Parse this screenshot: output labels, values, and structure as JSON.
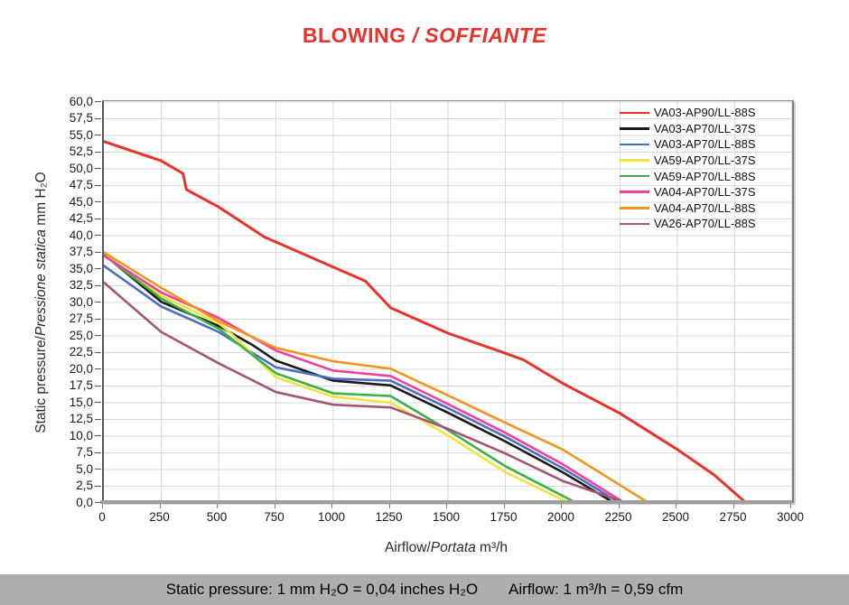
{
  "title": {
    "text_en": "BLOWING",
    "separator": " / ",
    "text_it": "SOFFIANTE",
    "color": "#e8322b"
  },
  "footer": {
    "left": "Static pressure: 1 mm H₂O = 0,04 inches H₂O",
    "right": "Airflow: 1 m³/h = 0,59 cfm",
    "bg_color": "#aeaeae"
  },
  "colors": {
    "gridline": "#d9d9d9",
    "axis": "#808080",
    "tick_text": "#1a1a1a"
  },
  "chart_data": {
    "type": "line",
    "title": "BLOWING / SOFFIANTE",
    "xlabel_parts": {
      "normal": "Airflow/",
      "italic": "Portata",
      "unit": " m³/h"
    },
    "ylabel_parts": {
      "normal": "Static pressure/",
      "italic": "Pressione statica",
      "unit": " mm  H₂O"
    },
    "xlim": [
      0,
      3000
    ],
    "xtick_step": 250,
    "ylim": [
      0,
      60
    ],
    "ytick_step": 2.5,
    "ytick_decimal_comma": true,
    "grid": true,
    "legend_position": "top-right",
    "series": [
      {
        "name": "VA03-AP90/LL-88S",
        "color": "#e8322b",
        "points": [
          [
            0,
            54.1
          ],
          [
            250,
            51.2
          ],
          [
            345,
            49.3
          ],
          [
            360,
            46.9
          ],
          [
            500,
            44.3
          ],
          [
            700,
            39.8
          ],
          [
            1000,
            35.3
          ],
          [
            1140,
            33.2
          ],
          [
            1250,
            29.2
          ],
          [
            1500,
            25.4
          ],
          [
            1750,
            22.4
          ],
          [
            1830,
            21.4
          ],
          [
            2000,
            17.9
          ],
          [
            2250,
            13.4
          ],
          [
            2500,
            8.0
          ],
          [
            2660,
            4.2
          ],
          [
            2800,
            0
          ]
        ]
      },
      {
        "name": "VA03-AP70/LL-37S",
        "color": "#1a1a1a",
        "points": [
          [
            0,
            37.2
          ],
          [
            250,
            30.1
          ],
          [
            500,
            26.5
          ],
          [
            650,
            23.6
          ],
          [
            750,
            21.3
          ],
          [
            1000,
            18.3
          ],
          [
            1250,
            17.6
          ],
          [
            1500,
            13.5
          ],
          [
            1750,
            9.2
          ],
          [
            2000,
            4.6
          ],
          [
            2225,
            0
          ]
        ]
      },
      {
        "name": "VA03-AP70/LL-88S",
        "color": "#4a6ec1",
        "points": [
          [
            0,
            35.5
          ],
          [
            250,
            29.4
          ],
          [
            500,
            25.6
          ],
          [
            750,
            20.3
          ],
          [
            1000,
            18.6
          ],
          [
            1250,
            18.3
          ],
          [
            1500,
            14.2
          ],
          [
            1750,
            9.9
          ],
          [
            2000,
            5.2
          ],
          [
            2250,
            0
          ]
        ]
      },
      {
        "name": "VA59-AP70/LL-37S",
        "color": "#efe33d",
        "points": [
          [
            0,
            37.3
          ],
          [
            250,
            31.0
          ],
          [
            500,
            26.9
          ],
          [
            560,
            25.2
          ],
          [
            750,
            18.8
          ],
          [
            1000,
            15.9
          ],
          [
            1250,
            15.0
          ],
          [
            1500,
            10.1
          ],
          [
            1750,
            4.6
          ],
          [
            2030,
            0
          ]
        ]
      },
      {
        "name": "VA59-AP70/LL-88S",
        "color": "#3fae49",
        "points": [
          [
            0,
            37.1
          ],
          [
            250,
            30.6
          ],
          [
            500,
            26.1
          ],
          [
            750,
            19.4
          ],
          [
            1000,
            16.4
          ],
          [
            1250,
            16.0
          ],
          [
            1500,
            10.9
          ],
          [
            1750,
            5.5
          ],
          [
            2060,
            0
          ]
        ]
      },
      {
        "name": "VA04-AP70/LL-37S",
        "color": "#f0419c",
        "points": [
          [
            0,
            37.0
          ],
          [
            250,
            31.5
          ],
          [
            500,
            27.7
          ],
          [
            750,
            22.8
          ],
          [
            1000,
            19.8
          ],
          [
            1250,
            19.0
          ],
          [
            1500,
            14.8
          ],
          [
            1750,
            10.5
          ],
          [
            2000,
            5.8
          ],
          [
            2270,
            0
          ]
        ]
      },
      {
        "name": "VA04-AP70/LL-88S",
        "color": "#f2941f",
        "points": [
          [
            0,
            37.5
          ],
          [
            250,
            32.2
          ],
          [
            500,
            27.2
          ],
          [
            750,
            23.2
          ],
          [
            1000,
            21.2
          ],
          [
            1250,
            20.1
          ],
          [
            1500,
            16.1
          ],
          [
            1750,
            12.0
          ],
          [
            2000,
            8.0
          ],
          [
            2375,
            0
          ]
        ]
      },
      {
        "name": "VA26-AP70/LL-88S",
        "color": "#a25577",
        "points": [
          [
            0,
            33.0
          ],
          [
            250,
            25.6
          ],
          [
            500,
            20.9
          ],
          [
            750,
            16.6
          ],
          [
            1000,
            14.7
          ],
          [
            1250,
            14.3
          ],
          [
            1500,
            11.1
          ],
          [
            1750,
            7.4
          ],
          [
            2000,
            3.3
          ],
          [
            2280,
            0
          ]
        ]
      }
    ]
  }
}
